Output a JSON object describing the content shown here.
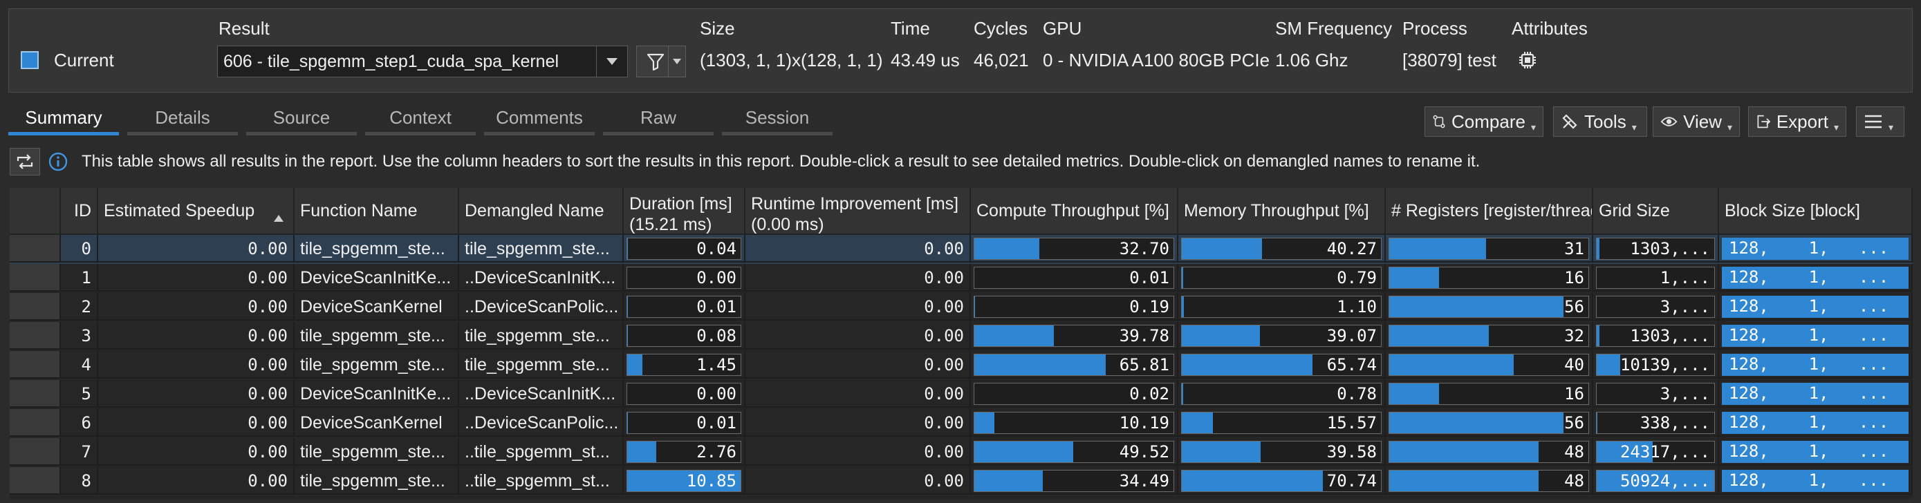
{
  "header": {
    "labels": {
      "result": "Result",
      "size": "Size",
      "time": "Time",
      "cycles": "Cycles",
      "gpu": "GPU",
      "sm_frequency": "SM Frequency",
      "process": "Process",
      "attributes": "Attributes"
    },
    "current_label": "Current",
    "result_value": "606 - tile_spgemm_step1_cuda_spa_kernel",
    "size_value": "(1303, 1, 1)x(128, 1, 1)",
    "time_value": "43.49 us",
    "cycles_value": "46,021",
    "gpu_value": "0 - NVIDIA A100 80GB PCIe",
    "sm_frequency_value": "1.06 Ghz",
    "process_value": "[38079] test",
    "accent_color": "#2f86d2"
  },
  "tabs": [
    "Summary",
    "Details",
    "Source",
    "Context",
    "Comments",
    "Raw",
    "Session"
  ],
  "active_tab": "Summary",
  "toolbar": {
    "compare": "Compare",
    "tools": "Tools",
    "view": "View",
    "export": "Export"
  },
  "info_text": "This table shows all results in the report. Use the column headers to sort the results in this report. Double-click a result to see detailed metrics. Double-click on demangled names to rename it.",
  "table": {
    "columns": {
      "id": "ID",
      "speedup": "Estimated Speedup",
      "function_name": "Function Name",
      "demangled_name": "Demangled Name",
      "duration": "Duration [ms]",
      "duration_sub": "(15.21 ms)",
      "runtime_improvement": "Runtime Improvement [ms]",
      "runtime_improvement_sub": "(0.00 ms)",
      "compute": "Compute Throughput [%]",
      "memory": "Memory Throughput [%]",
      "registers": "# Registers [register/thread]",
      "grid": "Grid Size",
      "block": "Block Size [block]"
    },
    "rows": [
      {
        "id": "0",
        "speedup": "0.00",
        "func": "tile_spgemm_ste...",
        "demangled": "tile_spgemm_ste...",
        "duration": "0.04",
        "runtime": "0.00",
        "compute": "32.70",
        "memory": "40.27",
        "registers": "31",
        "grid": "1303,...",
        "block": "128,    1,   ..."
      },
      {
        "id": "1",
        "speedup": "0.00",
        "func": "DeviceScanInitKe...",
        "demangled": "..DeviceScanInitK...",
        "duration": "0.00",
        "runtime": "0.00",
        "compute": "0.01",
        "memory": "0.79",
        "registers": "16",
        "grid": "1,...",
        "block": "128,    1,   ..."
      },
      {
        "id": "2",
        "speedup": "0.00",
        "func": "DeviceScanKernel",
        "demangled": "..DeviceScanPolic...",
        "duration": "0.01",
        "runtime": "0.00",
        "compute": "0.19",
        "memory": "1.10",
        "registers": "56",
        "grid": "3,...",
        "block": "128,    1,   ..."
      },
      {
        "id": "3",
        "speedup": "0.00",
        "func": "tile_spgemm_ste...",
        "demangled": "tile_spgemm_ste...",
        "duration": "0.08",
        "runtime": "0.00",
        "compute": "39.78",
        "memory": "39.07",
        "registers": "32",
        "grid": "1303,...",
        "block": "128,    1,   ..."
      },
      {
        "id": "4",
        "speedup": "0.00",
        "func": "tile_spgemm_ste...",
        "demangled": "tile_spgemm_ste...",
        "duration": "1.45",
        "runtime": "0.00",
        "compute": "65.81",
        "memory": "65.74",
        "registers": "40",
        "grid": "10139,...",
        "block": "128,    1,   ..."
      },
      {
        "id": "5",
        "speedup": "0.00",
        "func": "DeviceScanInitKe...",
        "demangled": "..DeviceScanInitK...",
        "duration": "0.00",
        "runtime": "0.00",
        "compute": "0.02",
        "memory": "0.78",
        "registers": "16",
        "grid": "3,...",
        "block": "128,    1,   ..."
      },
      {
        "id": "6",
        "speedup": "0.00",
        "func": "DeviceScanKernel",
        "demangled": "..DeviceScanPolic...",
        "duration": "0.01",
        "runtime": "0.00",
        "compute": "10.19",
        "memory": "15.57",
        "registers": "56",
        "grid": "338,...",
        "block": "128,    1,   ..."
      },
      {
        "id": "7",
        "speedup": "0.00",
        "func": "tile_spgemm_ste...",
        "demangled": "..tile_spgemm_st...",
        "duration": "2.76",
        "runtime": "0.00",
        "compute": "49.52",
        "memory": "39.58",
        "registers": "48",
        "grid": "24317,...",
        "block": "128,    1,   ..."
      },
      {
        "id": "8",
        "speedup": "0.00",
        "func": "tile_spgemm_ste...",
        "demangled": "..tile_spgemm_st...",
        "duration": "10.85",
        "runtime": "0.00",
        "compute": "34.49",
        "memory": "70.74",
        "registers": "48",
        "grid": "50924,...",
        "block": "128,    1,   ..."
      }
    ],
    "bar_scales": {
      "duration_max": 10.85,
      "compute_max": 100,
      "memory_max": 100,
      "registers_max": 64,
      "grid_max": 50924
    }
  }
}
